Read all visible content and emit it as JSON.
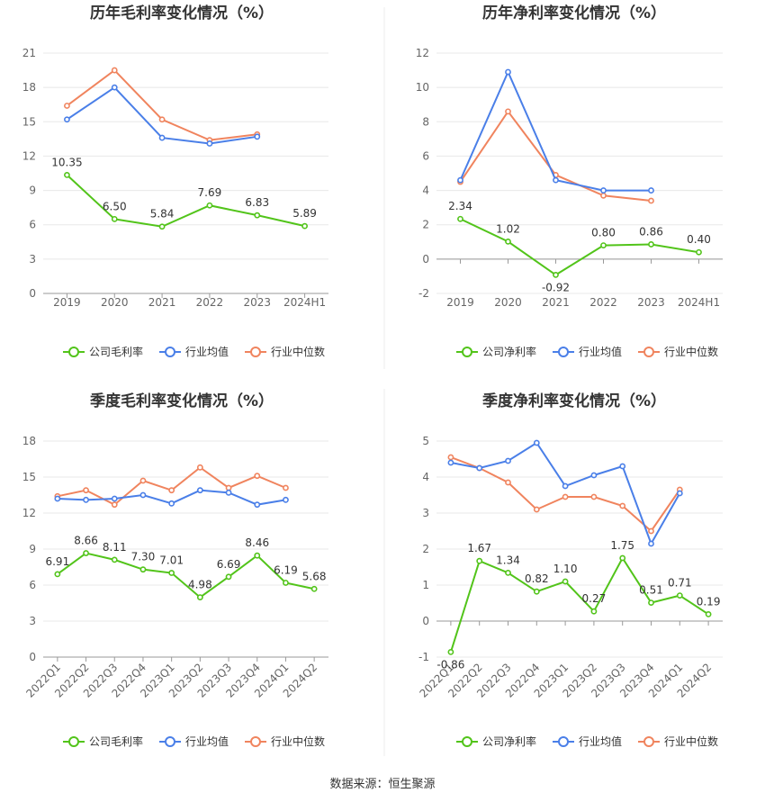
{
  "source_text": "数据来源：恒生聚源",
  "legend_colors": {
    "company": "#52c41a",
    "avg": "#4a7fe8",
    "median": "#f0845e"
  },
  "chart_data": [
    {
      "type": "line",
      "title": "历年毛利率变化情况（%）",
      "categories": [
        "2019",
        "2020",
        "2021",
        "2022",
        "2023",
        "2024H1"
      ],
      "ylim": [
        0,
        21
      ],
      "yticks": [
        0,
        3,
        6,
        9,
        12,
        15,
        18,
        21
      ],
      "grid": true,
      "legend_position": "bottom",
      "series": [
        {
          "name": "公司毛利率",
          "key": "company",
          "labels": true,
          "values": [
            10.35,
            6.5,
            5.84,
            7.69,
            6.83,
            5.89
          ]
        },
        {
          "name": "行业均值",
          "key": "avg",
          "values": [
            15.2,
            18.0,
            13.6,
            13.1,
            13.7,
            null
          ]
        },
        {
          "name": "行业中位数",
          "key": "median",
          "values": [
            16.4,
            19.5,
            15.2,
            13.4,
            13.9,
            null
          ]
        }
      ]
    },
    {
      "type": "line",
      "title": "历年净利率变化情况（%）",
      "categories": [
        "2019",
        "2020",
        "2021",
        "2022",
        "2023",
        "2024H1"
      ],
      "ylim": [
        -2,
        12
      ],
      "yticks": [
        -2,
        0,
        2,
        4,
        6,
        8,
        10,
        12
      ],
      "grid": true,
      "legend_position": "bottom",
      "series": [
        {
          "name": "公司净利率",
          "key": "company",
          "labels": true,
          "values": [
            2.34,
            1.02,
            -0.92,
            0.8,
            0.86,
            0.4
          ]
        },
        {
          "name": "行业均值",
          "key": "avg",
          "values": [
            4.6,
            10.9,
            4.6,
            4.0,
            4.0,
            null
          ]
        },
        {
          "name": "行业中位数",
          "key": "median",
          "values": [
            4.5,
            8.6,
            4.9,
            3.7,
            3.4,
            null
          ]
        }
      ]
    },
    {
      "type": "line",
      "title": "季度毛利率变化情况（%）",
      "categories": [
        "2022Q1",
        "2022Q2",
        "2022Q3",
        "2022Q4",
        "2023Q1",
        "2023Q2",
        "2023Q3",
        "2023Q4",
        "2024Q1",
        "2024Q2"
      ],
      "ylim": [
        0,
        18
      ],
      "yticks": [
        0,
        3,
        6,
        9,
        12,
        15,
        18
      ],
      "grid": true,
      "legend_position": "bottom",
      "series": [
        {
          "name": "公司毛利率",
          "key": "company",
          "labels": true,
          "values": [
            6.91,
            8.66,
            8.11,
            7.3,
            7.01,
            4.98,
            6.69,
            8.46,
            6.19,
            5.68
          ]
        },
        {
          "name": "行业均值",
          "key": "avg",
          "values": [
            13.2,
            13.1,
            13.2,
            13.5,
            12.8,
            13.9,
            13.7,
            12.7,
            13.1,
            null
          ]
        },
        {
          "name": "行业中位数",
          "key": "median",
          "values": [
            13.4,
            13.9,
            12.7,
            14.7,
            13.9,
            15.8,
            14.1,
            15.1,
            14.1,
            null
          ]
        }
      ]
    },
    {
      "type": "line",
      "title": "季度净利率变化情况（%）",
      "categories": [
        "2022Q1",
        "2022Q2",
        "2022Q3",
        "2022Q4",
        "2023Q1",
        "2023Q2",
        "2023Q3",
        "2023Q4",
        "2024Q1",
        "2024Q2"
      ],
      "ylim": [
        -1,
        5
      ],
      "yticks": [
        -1,
        0,
        1,
        2,
        3,
        4,
        5
      ],
      "grid": true,
      "legend_position": "bottom",
      "series": [
        {
          "name": "公司净利率",
          "key": "company",
          "labels": true,
          "values": [
            -0.86,
            1.67,
            1.34,
            0.82,
            1.1,
            0.27,
            1.75,
            0.51,
            0.71,
            0.19
          ]
        },
        {
          "name": "行业均值",
          "key": "avg",
          "values": [
            4.4,
            4.25,
            4.45,
            4.95,
            3.75,
            4.05,
            4.3,
            2.15,
            3.55,
            null
          ]
        },
        {
          "name": "行业中位数",
          "key": "median",
          "values": [
            4.55,
            4.25,
            3.85,
            3.1,
            3.45,
            3.45,
            3.2,
            2.5,
            3.65,
            null
          ]
        }
      ]
    }
  ]
}
